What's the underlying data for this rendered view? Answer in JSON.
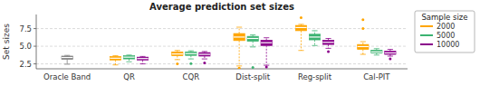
{
  "chart_data": {
    "type": "box",
    "title": "Average prediction set sizes",
    "y_label": "Set sizes",
    "categories": [
      "Oracle Band",
      "QR",
      "CQR",
      "Dist-split",
      "Reg-split",
      "Cal-PIT"
    ],
    "ylim": [
      1.8,
      9.5
    ],
    "yticks": [
      2.5,
      {
        "value": 5.0,
        "label": "5.0"
      },
      7.5
    ],
    "grid": true,
    "legend": "right",
    "legend_title": "Sample size",
    "series": [
      {
        "color": "#808080",
        "marker": "plus",
        "line_style": "solid",
        "values": [
          {
            "whislo": 2.45,
            "q1": 3.15,
            "med": 3.4,
            "q3": 3.6,
            "whishi": 3.7,
            "fliers": []
          },
          null,
          null,
          null,
          null,
          null
        ]
      },
      {
        "name": "2000",
        "color": "#FFA500",
        "marker": "point",
        "line_style": "dashed",
        "values": [
          null,
          {
            "whislo": 2.35,
            "q1": 3.05,
            "med": 3.3,
            "q3": 3.55,
            "whishi": 3.65,
            "fliers": []
          },
          {
            "whislo": 3.1,
            "q1": 3.65,
            "med": 3.9,
            "q3": 4.2,
            "whishi": 4.4,
            "fliers": [
              2.5
            ]
          },
          {
            "whislo": 2.2,
            "q1": 5.8,
            "med": 6.3,
            "q3": 6.8,
            "whishi": 7.7,
            "fliers": [
              1.85,
              1.9
            ]
          },
          {
            "whislo": 4.4,
            "q1": 7.2,
            "med": 7.65,
            "q3": 7.95,
            "whishi": 8.1,
            "fliers": [
              9.05
            ]
          },
          {
            "whislo": 3.85,
            "q1": 4.55,
            "med": 4.95,
            "q3": 5.25,
            "whishi": 5.65,
            "fliers": [
              8.75,
              7.5
            ]
          }
        ]
      },
      {
        "name": "5000",
        "color": "#3CB371",
        "marker": "point",
        "line_style": "dashed",
        "values": [
          null,
          {
            "whislo": 2.8,
            "q1": 3.2,
            "med": 3.45,
            "q3": 3.65,
            "whishi": 3.75,
            "fliers": []
          },
          {
            "whislo": 3.2,
            "q1": 3.7,
            "med": 3.95,
            "q3": 4.2,
            "whishi": 4.35,
            "fliers": [
              2.55
            ]
          },
          {
            "whislo": 4.9,
            "q1": 5.7,
            "med": 6.1,
            "q3": 6.4,
            "whishi": 6.6,
            "fliers": [
              2.0
            ]
          },
          {
            "whislo": 5.1,
            "q1": 5.9,
            "med": 6.3,
            "q3": 6.7,
            "whishi": 7.2,
            "fliers": []
          },
          {
            "whislo": 3.75,
            "q1": 4.05,
            "med": 4.2,
            "q3": 4.45,
            "whishi": 4.65,
            "fliers": []
          }
        ]
      },
      {
        "name": "10000",
        "color": "#8B008B",
        "marker": "point",
        "line_style": "dashed",
        "values": [
          null,
          {
            "whislo": 2.5,
            "q1": 3.05,
            "med": 3.25,
            "q3": 3.45,
            "whishi": 3.55,
            "fliers": []
          },
          {
            "whislo": 3.2,
            "q1": 3.6,
            "med": 3.85,
            "q3": 4.1,
            "whishi": 4.25,
            "fliers": [
              2.65
            ]
          },
          {
            "whislo": 2.3,
            "q1": 5.1,
            "med": 5.5,
            "q3": 5.85,
            "whishi": 6.2,
            "fliers": [
              2.05
            ]
          },
          {
            "whislo": 4.7,
            "q1": 5.25,
            "med": 5.55,
            "q3": 5.85,
            "whishi": 6.1,
            "fliers": [
              4.25
            ]
          },
          {
            "whislo": 3.6,
            "q1": 3.85,
            "med": 4.05,
            "q3": 4.3,
            "whishi": 4.55,
            "fliers": [
              3.2
            ]
          }
        ]
      }
    ]
  }
}
